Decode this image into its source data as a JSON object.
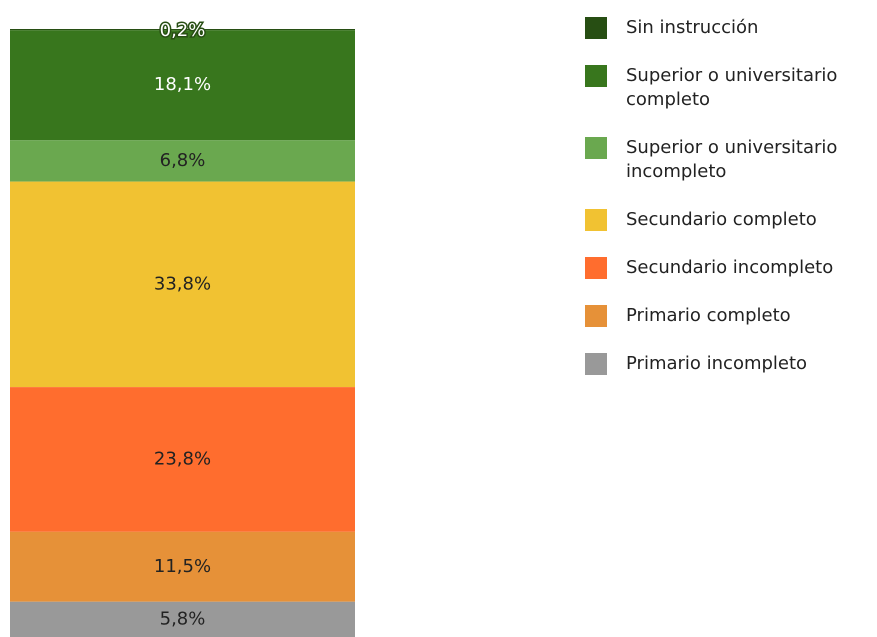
{
  "chart_data": {
    "type": "stacked-bar",
    "series": [
      {
        "name": "Sin instrucción",
        "color": "#274e13",
        "values": [
          0.2
        ],
        "value_labels": [
          "0,2%"
        ]
      },
      {
        "name": "Superior o universitario completo",
        "color": "#38761d",
        "values": [
          18.1
        ],
        "value_labels": [
          "18,1%"
        ]
      },
      {
        "name": "Superior o universitario incompleto",
        "color": "#6aa84f",
        "values": [
          6.8
        ],
        "value_labels": [
          "6,8%"
        ]
      },
      {
        "name": "Secundario completo",
        "color": "#f1c232",
        "values": [
          33.8
        ],
        "value_labels": [
          "33,8%"
        ]
      },
      {
        "name": "Secundario incompleto",
        "color": "#ff6d2e",
        "values": [
          23.8
        ],
        "value_labels": [
          "23,8%"
        ]
      },
      {
        "name": "Primario completo",
        "color": "#e69138",
        "values": [
          11.5
        ],
        "value_labels": [
          "11,5%"
        ]
      },
      {
        "name": "Primario incompleto",
        "color": "#999999",
        "values": [
          5.8
        ],
        "value_labels": [
          "5,8%"
        ]
      }
    ]
  }
}
